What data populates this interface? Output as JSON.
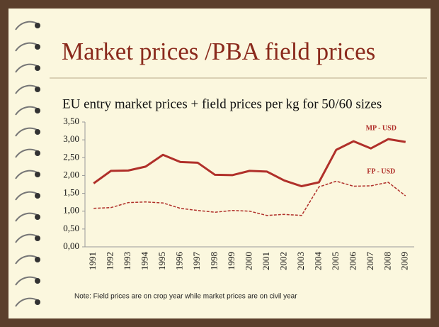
{
  "chart_data": {
    "type": "line",
    "title": "Market prices /PBA field prices",
    "subtitle": "EU entry market prices + field prices per kg for 50/60 sizes",
    "note": "Note: Field prices are on crop year while market prices are on civil year",
    "categories": [
      "1991",
      "1992",
      "1993",
      "1994",
      "1995",
      "1996",
      "1997",
      "1998",
      "1999",
      "2000",
      "2001",
      "2002",
      "2003",
      "2004",
      "2005",
      "2006",
      "2007",
      "2008",
      "2009"
    ],
    "series": [
      {
        "name": "MP - USD",
        "color": "#b0302a",
        "dashed": false,
        "values": [
          1.78,
          2.13,
          2.14,
          2.25,
          2.58,
          2.38,
          2.36,
          2.02,
          2.01,
          2.13,
          2.11,
          1.86,
          1.7,
          1.81,
          2.72,
          2.96,
          2.76,
          3.02,
          2.94
        ]
      },
      {
        "name": "FP - USD",
        "color": "#b0302a",
        "dashed": true,
        "values": [
          1.08,
          1.1,
          1.24,
          1.26,
          1.23,
          1.08,
          1.02,
          0.97,
          1.02,
          1.0,
          0.88,
          0.91,
          0.88,
          1.68,
          1.84,
          1.7,
          1.71,
          1.81,
          1.43
        ]
      }
    ],
    "ylim": [
      0,
      3.5
    ],
    "yticks": [
      {
        "value": 0,
        "label": "0,00"
      },
      {
        "value": 0.5,
        "label": "0,50"
      },
      {
        "value": 1,
        "label": "1,00"
      },
      {
        "value": 1.5,
        "label": "1,50"
      },
      {
        "value": 2,
        "label": "2,00"
      },
      {
        "value": 2.5,
        "label": "2,50"
      },
      {
        "value": 3,
        "label": "3,00"
      },
      {
        "value": 3.5,
        "label": "3,50"
      }
    ],
    "grid": false
  }
}
